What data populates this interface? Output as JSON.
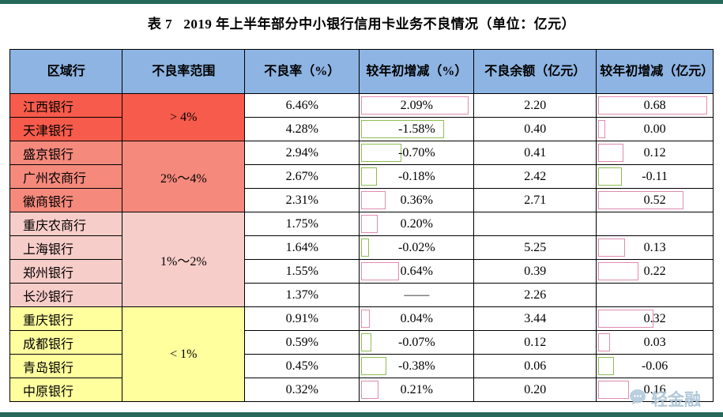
{
  "page": {
    "title": "表 7   2019 年上半年部分中小银行信用卡业务不良情况（单位：亿元）",
    "colors": {
      "rule_green": "#26695a",
      "header_blue": "#8db4e2",
      "group_red": "#f75b4b",
      "group_salmon": "#f4897c",
      "group_pink": "#f7cdc9",
      "group_yellow": "#ffff9e",
      "bar_pink": "#e08bb0",
      "bar_green": "#8fbe53"
    }
  },
  "table": {
    "headers": [
      "区域行",
      "不良率范围",
      "不良率（%）",
      "较年初增减（%）",
      "不良余额（亿元）",
      "较年初增减（亿元）"
    ],
    "groups": [
      {
        "label": "> 4%",
        "span": 2,
        "color": "#f75b4b"
      },
      {
        "label": "2%～4%",
        "span": 3,
        "color": "#f4897c"
      },
      {
        "label": "1%～2%",
        "span": 4,
        "color": "#f7cdc9"
      },
      {
        "label": "< 1%",
        "span": 4,
        "color": "#ffff9e"
      }
    ],
    "rows": [
      {
        "bank": "江西银行",
        "npl_rate": "6.46%",
        "rate_change": "2.09%",
        "balance": "2.20",
        "balance_change": "0.68"
      },
      {
        "bank": "天津银行",
        "npl_rate": "4.28%",
        "rate_change": "-1.58%",
        "balance": "0.40",
        "balance_change": "0.00"
      },
      {
        "bank": "盛京银行",
        "npl_rate": "2.94%",
        "rate_change": "-0.70%",
        "balance": "0.41",
        "balance_change": "0.12"
      },
      {
        "bank": "广州农商行",
        "npl_rate": "2.67%",
        "rate_change": "-0.18%",
        "balance": "2.42",
        "balance_change": "-0.11"
      },
      {
        "bank": "徽商银行",
        "npl_rate": "2.31%",
        "rate_change": "0.36%",
        "balance": "2.71",
        "balance_change": "0.52"
      },
      {
        "bank": "重庆农商行",
        "npl_rate": "1.75%",
        "rate_change": "0.20%",
        "balance": "",
        "balance_change": ""
      },
      {
        "bank": "上海银行",
        "npl_rate": "1.64%",
        "rate_change": "-0.02%",
        "balance": "5.25",
        "balance_change": "0.13"
      },
      {
        "bank": "郑州银行",
        "npl_rate": "1.55%",
        "rate_change": "0.64%",
        "balance": "0.39",
        "balance_change": "0.22"
      },
      {
        "bank": "长沙银行",
        "npl_rate": "1.37%",
        "rate_change": "——",
        "balance": "2.26",
        "balance_change": ""
      },
      {
        "bank": "重庆银行",
        "npl_rate": "0.91%",
        "rate_change": "0.04%",
        "balance": "3.44",
        "balance_change": "0.32"
      },
      {
        "bank": "成都银行",
        "npl_rate": "0.59%",
        "rate_change": "-0.07%",
        "balance": "0.12",
        "balance_change": "0.03"
      },
      {
        "bank": "青岛银行",
        "npl_rate": "0.45%",
        "rate_change": "-0.38%",
        "balance": "0.06",
        "balance_change": "-0.06"
      },
      {
        "bank": "中原银行",
        "npl_rate": "0.32%",
        "rate_change": "0.21%",
        "balance": "0.20",
        "balance_change": "0.16"
      }
    ]
  },
  "watermark": {
    "text": "轻金融"
  }
}
